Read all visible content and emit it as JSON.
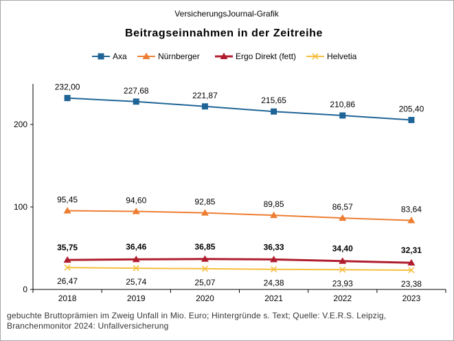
{
  "chart_data": {
    "type": "line",
    "supertitle": "VersicherungsJournal-Grafik",
    "title": "Beitragseinnahmen  in der Zeitreihe",
    "categories": [
      "2018",
      "2019",
      "2020",
      "2021",
      "2022",
      "2023"
    ],
    "ylim": [
      0,
      250
    ],
    "yticks": [
      0,
      100,
      200
    ],
    "grid": false,
    "legend_position": "top",
    "series": [
      {
        "name": "Axa",
        "color": "#1f6496",
        "marker": "square",
        "bold_labels": false,
        "values": [
          232.0,
          227.68,
          221.87,
          215.65,
          210.86,
          205.4
        ],
        "labels": [
          "232,00",
          "227,68",
          "221,87",
          "215,65",
          "210,86",
          "205,40"
        ]
      },
      {
        "name": "Nürnberger",
        "color": "#ed7d31",
        "marker": "triangle",
        "bold_labels": false,
        "values": [
          95.45,
          94.6,
          92.85,
          89.85,
          86.57,
          83.64
        ],
        "labels": [
          "95,45",
          "94,60",
          "92,85",
          "89,85",
          "86,57",
          "83,64"
        ]
      },
      {
        "name": "Ergo Direkt (fett)",
        "color": "#b01c2e",
        "marker": "triangle",
        "bold_labels": true,
        "values": [
          35.75,
          36.46,
          36.85,
          36.33,
          34.4,
          32.31
        ],
        "labels": [
          "35,75",
          "36,46",
          "36,85",
          "36,33",
          "34,40",
          "32,31"
        ]
      },
      {
        "name": "Helvetia",
        "color": "#f5be3c",
        "marker": "x",
        "bold_labels": false,
        "values": [
          26.47,
          25.74,
          25.07,
          24.38,
          23.93,
          23.38
        ],
        "labels": [
          "26,47",
          "25,74",
          "25,07",
          "24,38",
          "23,93",
          "23,38"
        ]
      }
    ]
  },
  "footer": "gebuchte Bruttoprämien im Zweig Unfall in Mio. Euro; Hintergründe  s. Text; Quelle: V.E.R.S. Leipzig, Branchenmonitor 2024: Unfallversicherung"
}
